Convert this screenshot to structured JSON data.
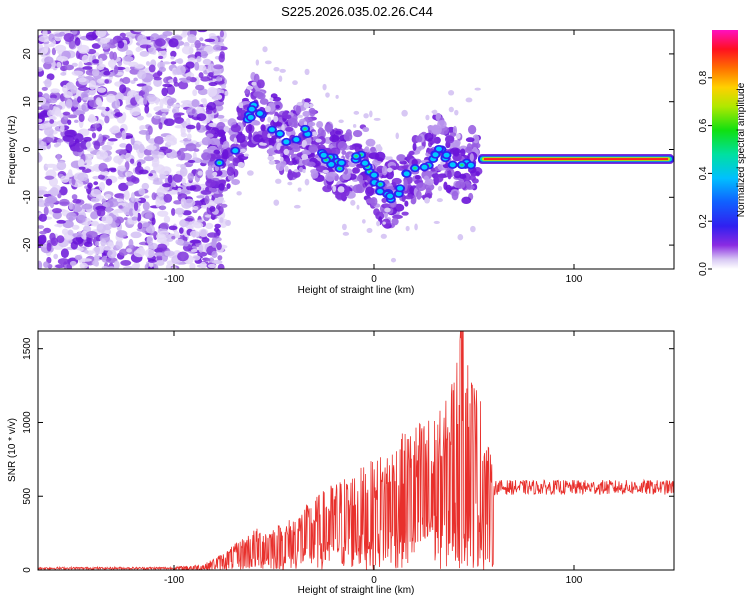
{
  "title": "S225.2026.035.02.26.C44",
  "chart_data": [
    {
      "type": "heatmap",
      "xlabel": "Height of straight line (km)",
      "ylabel": "Frequency (Hz)",
      "xlim": [
        -168,
        150
      ],
      "ylim": [
        -25,
        25
      ],
      "xticks": [
        -100,
        0,
        100
      ],
      "yticks": [
        20,
        10,
        0,
        -10,
        -20
      ],
      "colorbar": {
        "label": "Normalized spectral amplitude",
        "ticks": [
          0.0,
          0.2,
          0.4,
          0.6,
          0.8
        ],
        "range": [
          0,
          1
        ]
      },
      "ridge": [
        {
          "x": -84,
          "y": -3
        },
        {
          "x": -70,
          "y": -1
        },
        {
          "x": -60,
          "y": 9
        },
        {
          "x": -54,
          "y": 7
        },
        {
          "x": -48,
          "y": 3
        },
        {
          "x": -40,
          "y": 1
        },
        {
          "x": -34,
          "y": 4
        },
        {
          "x": -28,
          "y": 0
        },
        {
          "x": -22,
          "y": -2
        },
        {
          "x": -14,
          "y": -4
        },
        {
          "x": -6,
          "y": -1
        },
        {
          "x": 0,
          "y": -6
        },
        {
          "x": 5,
          "y": -9
        },
        {
          "x": 12,
          "y": -10
        },
        {
          "x": 18,
          "y": -4
        },
        {
          "x": 25,
          "y": -4
        },
        {
          "x": 32,
          "y": 0
        },
        {
          "x": 38,
          "y": -2
        },
        {
          "x": 45,
          "y": -4
        },
        {
          "x": 52,
          "y": -2
        },
        {
          "x": 150,
          "y": -2
        }
      ]
    },
    {
      "type": "line",
      "xlabel": "Height of straight line (km)",
      "ylabel": "SNR (10 * v/v)",
      "xlim": [
        -168,
        150
      ],
      "ylim": [
        0,
        1620
      ],
      "xticks": [
        -100,
        0,
        100
      ],
      "yticks": [
        0,
        500,
        1000,
        1500
      ],
      "series": [
        {
          "name": "SNR",
          "color": "#e8302c",
          "envelope": [
            {
              "x": -168,
              "y": 20
            },
            {
              "x": -100,
              "y": 20
            },
            {
              "x": -85,
              "y": 40
            },
            {
              "x": -75,
              "y": 120
            },
            {
              "x": -60,
              "y": 280
            },
            {
              "x": -45,
              "y": 320
            },
            {
              "x": -20,
              "y": 600
            },
            {
              "x": 0,
              "y": 750
            },
            {
              "x": 20,
              "y": 1000
            },
            {
              "x": 35,
              "y": 1100
            },
            {
              "x": 44,
              "y": 1620
            },
            {
              "x": 55,
              "y": 1100
            },
            {
              "x": 60,
              "y": 620
            },
            {
              "x": 150,
              "y": 620
            }
          ]
        }
      ]
    }
  ]
}
